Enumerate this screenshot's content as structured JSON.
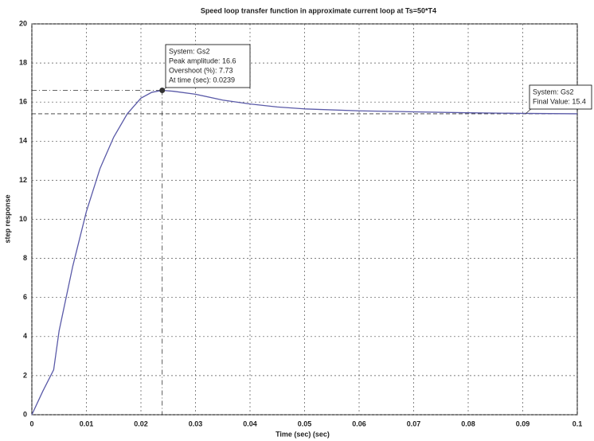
{
  "chart_data": {
    "type": "line",
    "title": "Speed loop transfer function in approximate current loop at Ts=50*T4",
    "xlabel": "Time (sec) (sec)",
    "ylabel": "step response",
    "x": [
      0,
      0.002,
      0.004,
      0.005,
      0.0075,
      0.01,
      0.0125,
      0.015,
      0.0175,
      0.02,
      0.022,
      0.0239,
      0.026,
      0.03,
      0.035,
      0.04,
      0.045,
      0.05,
      0.06,
      0.07,
      0.08,
      0.09,
      0.1
    ],
    "values": [
      0,
      1.2,
      2.3,
      4.3,
      7.6,
      10.4,
      12.6,
      14.2,
      15.4,
      16.2,
      16.5,
      16.6,
      16.55,
      16.4,
      16.1,
      15.9,
      15.75,
      15.65,
      15.55,
      15.5,
      15.45,
      15.42,
      15.4
    ],
    "color": "#5a5aa8",
    "xlim": [
      0,
      0.1
    ],
    "ylim": [
      0,
      20
    ],
    "xticks": [
      0,
      0.01,
      0.02,
      0.03,
      0.04,
      0.05,
      0.06,
      0.07,
      0.08,
      0.09,
      0.1
    ],
    "yticks": [
      0,
      2,
      4,
      6,
      8,
      10,
      12,
      14,
      16,
      18,
      20
    ],
    "grid": true,
    "peak": {
      "x": 0.0239,
      "y": 16.6,
      "labels": [
        "System: Gs2",
        "Peak amplitude: 16.6",
        "Overshoot (%): 7.73",
        "At time (sec): 0.0239"
      ]
    },
    "final_value": {
      "y": 15.4,
      "labels": [
        "System: Gs2",
        "Final Value: 15.4"
      ]
    }
  }
}
